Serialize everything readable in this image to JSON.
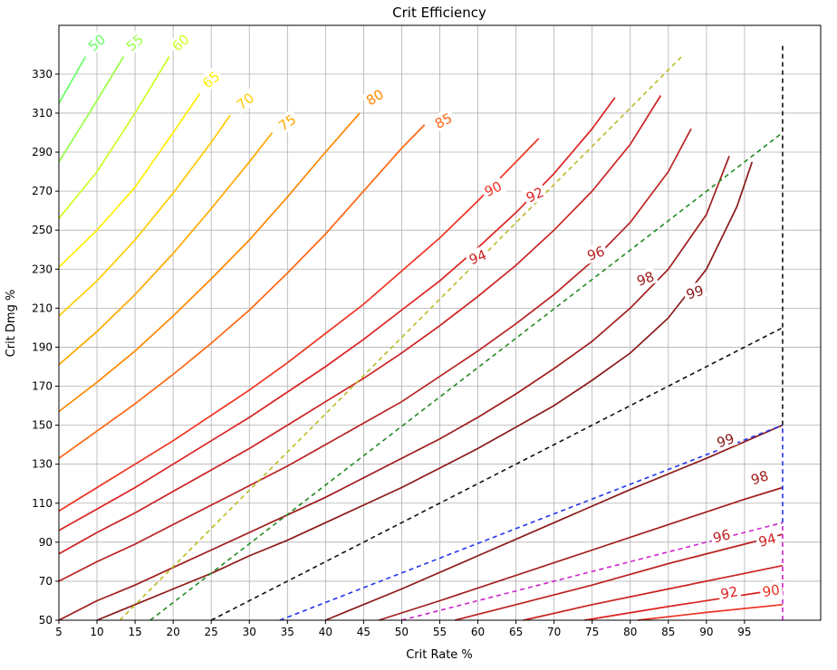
{
  "chart_data": {
    "type": "line",
    "subtype": "contour",
    "title": "Crit Efficiency",
    "xlabel": "Crit Rate %",
    "ylabel": "Crit Dmg %",
    "xlim": [
      5,
      105
    ],
    "ylim": [
      50,
      355
    ],
    "xticks": [
      5,
      10,
      15,
      20,
      25,
      30,
      35,
      40,
      45,
      50,
      55,
      60,
      65,
      70,
      75,
      80,
      85,
      90,
      95
    ],
    "yticks": [
      50,
      70,
      90,
      110,
      130,
      150,
      170,
      190,
      210,
      230,
      250,
      270,
      290,
      310,
      330
    ],
    "grid": true,
    "contour_levels": [
      {
        "level": 50,
        "label": "50",
        "color": "#66ff66"
      },
      {
        "level": 55,
        "label": "55",
        "color": "#99ff44"
      },
      {
        "level": 60,
        "label": "60",
        "color": "#ccff22"
      },
      {
        "level": 65,
        "label": "65",
        "color": "#ffee00"
      },
      {
        "level": 70,
        "label": "70",
        "color": "#ffcc00"
      },
      {
        "level": 75,
        "label": "75",
        "color": "#ffaa00"
      },
      {
        "level": 80,
        "label": "80",
        "color": "#ff8800"
      },
      {
        "level": 85,
        "label": "85",
        "color": "#ff6611"
      },
      {
        "level": 90,
        "label": "90",
        "color": "#ee3322"
      },
      {
        "level": 92,
        "label": "92",
        "color": "#dd2222"
      },
      {
        "level": 94,
        "label": "94",
        "color": "#cc2222"
      },
      {
        "level": 96,
        "label": "96",
        "color": "#bb2222"
      },
      {
        "level": 98,
        "label": "98",
        "color": "#a01c1c"
      },
      {
        "level": 99,
        "label": "99",
        "color": "#8b1a1a"
      }
    ],
    "upper_contours": [
      {
        "level": 50,
        "points": [
          [
            5,
            315
          ],
          [
            8.5,
            339
          ]
        ]
      },
      {
        "level": 55,
        "points": [
          [
            5,
            285
          ],
          [
            9,
            310
          ],
          [
            13.5,
            339
          ]
        ]
      },
      {
        "level": 60,
        "points": [
          [
            5,
            256
          ],
          [
            10,
            280
          ],
          [
            15,
            310
          ],
          [
            19.5,
            339
          ]
        ]
      },
      {
        "level": 65,
        "points": [
          [
            5,
            231
          ],
          [
            10,
            250
          ],
          [
            15,
            272
          ],
          [
            20,
            300
          ],
          [
            23.5,
            320
          ]
        ]
      },
      {
        "level": 70,
        "points": [
          [
            5,
            206
          ],
          [
            10,
            224
          ],
          [
            15,
            245
          ],
          [
            20,
            269
          ],
          [
            25,
            295
          ],
          [
            27.5,
            309
          ]
        ]
      },
      {
        "level": 75,
        "points": [
          [
            5,
            181
          ],
          [
            10,
            198
          ],
          [
            15,
            217
          ],
          [
            20,
            238
          ],
          [
            25,
            261
          ],
          [
            30,
            285
          ],
          [
            33,
            300
          ]
        ]
      },
      {
        "level": 80,
        "points": [
          [
            5,
            157
          ],
          [
            10,
            172
          ],
          [
            15,
            188
          ],
          [
            20,
            206
          ],
          [
            25,
            225
          ],
          [
            30,
            245
          ],
          [
            35,
            267
          ],
          [
            40,
            290
          ],
          [
            44.5,
            310
          ]
        ]
      },
      {
        "level": 85,
        "points": [
          [
            5,
            133
          ],
          [
            10,
            147
          ],
          [
            15,
            161
          ],
          [
            20,
            176
          ],
          [
            25,
            192
          ],
          [
            30,
            209
          ],
          [
            35,
            228
          ],
          [
            40,
            248
          ],
          [
            45,
            270
          ],
          [
            50,
            292
          ],
          [
            53,
            304
          ]
        ]
      },
      {
        "level": 90,
        "points": [
          [
            5,
            106
          ],
          [
            10,
            118
          ],
          [
            15,
            130
          ],
          [
            20,
            142
          ],
          [
            25,
            155
          ],
          [
            30,
            168
          ],
          [
            35,
            182
          ],
          [
            40,
            197
          ],
          [
            45,
            212
          ],
          [
            50,
            229
          ],
          [
            55,
            246
          ],
          [
            60,
            265
          ],
          [
            65,
            285
          ],
          [
            68,
            297
          ]
        ]
      },
      {
        "level": 92,
        "points": [
          [
            5,
            96
          ],
          [
            10,
            107
          ],
          [
            15,
            118
          ],
          [
            20,
            130
          ],
          [
            25,
            142
          ],
          [
            30,
            154
          ],
          [
            35,
            167
          ],
          [
            40,
            180
          ],
          [
            45,
            194
          ],
          [
            50,
            209
          ],
          [
            55,
            224
          ],
          [
            60,
            241
          ],
          [
            65,
            259
          ],
          [
            70,
            279
          ],
          [
            75,
            302
          ],
          [
            78,
            318
          ]
        ]
      },
      {
        "level": 94,
        "points": [
          [
            5,
            84
          ],
          [
            10,
            95
          ],
          [
            15,
            105
          ],
          [
            20,
            116
          ],
          [
            25,
            127
          ],
          [
            30,
            138
          ],
          [
            35,
            150
          ],
          [
            40,
            162
          ],
          [
            45,
            174
          ],
          [
            50,
            187
          ],
          [
            55,
            201
          ],
          [
            60,
            216
          ],
          [
            65,
            232
          ],
          [
            70,
            250
          ],
          [
            75,
            270
          ],
          [
            80,
            294
          ],
          [
            84,
            319
          ]
        ]
      },
      {
        "level": 96,
        "points": [
          [
            5,
            70
          ],
          [
            10,
            80
          ],
          [
            15,
            89
          ],
          [
            20,
            99
          ],
          [
            25,
            109
          ],
          [
            30,
            119
          ],
          [
            35,
            129
          ],
          [
            40,
            140
          ],
          [
            45,
            151
          ],
          [
            50,
            162
          ],
          [
            55,
            175
          ],
          [
            60,
            188
          ],
          [
            65,
            202
          ],
          [
            70,
            217
          ],
          [
            75,
            234
          ],
          [
            80,
            254
          ],
          [
            85,
            280
          ],
          [
            88,
            302
          ]
        ]
      },
      {
        "level": 98,
        "points": [
          [
            5,
            50
          ],
          [
            10,
            60
          ],
          [
            15,
            68
          ],
          [
            20,
            77
          ],
          [
            25,
            86
          ],
          [
            30,
            95
          ],
          [
            35,
            104
          ],
          [
            40,
            113
          ],
          [
            45,
            123
          ],
          [
            50,
            133
          ],
          [
            55,
            143
          ],
          [
            60,
            154
          ],
          [
            65,
            166
          ],
          [
            70,
            179
          ],
          [
            75,
            193
          ],
          [
            80,
            210
          ],
          [
            85,
            230
          ],
          [
            90,
            258
          ],
          [
            93,
            288
          ]
        ]
      },
      {
        "level": 99,
        "points": [
          [
            10,
            50
          ],
          [
            15,
            58
          ],
          [
            20,
            66
          ],
          [
            25,
            74
          ],
          [
            30,
            83
          ],
          [
            35,
            91
          ],
          [
            40,
            100
          ],
          [
            45,
            109
          ],
          [
            50,
            118
          ],
          [
            55,
            128
          ],
          [
            60,
            138
          ],
          [
            65,
            149
          ],
          [
            70,
            160
          ],
          [
            75,
            173
          ],
          [
            80,
            187
          ],
          [
            85,
            205
          ],
          [
            90,
            230
          ],
          [
            94,
            262
          ],
          [
            96,
            285
          ]
        ]
      }
    ],
    "lower_contours": [
      {
        "level": 99,
        "points": [
          [
            40,
            50
          ],
          [
            50,
            66
          ],
          [
            60,
            83
          ],
          [
            70,
            100
          ],
          [
            80,
            117
          ],
          [
            90,
            133
          ],
          [
            100,
            150
          ]
        ]
      },
      {
        "level": 98,
        "points": [
          [
            47,
            50
          ],
          [
            55,
            60
          ],
          [
            65,
            73
          ],
          [
            75,
            86
          ],
          [
            85,
            99
          ],
          [
            95,
            112
          ],
          [
            100,
            118
          ]
        ]
      },
      {
        "level": 96,
        "points": [
          [
            57,
            50
          ],
          [
            65,
            58
          ],
          [
            75,
            68
          ],
          [
            85,
            79
          ],
          [
            95,
            89
          ],
          [
            100,
            94
          ]
        ]
      },
      {
        "level": 94,
        "points": [
          [
            66,
            50
          ],
          [
            75,
            58
          ],
          [
            85,
            66
          ],
          [
            95,
            74
          ],
          [
            100,
            78
          ]
        ]
      },
      {
        "level": 92,
        "points": [
          [
            74,
            50
          ],
          [
            85,
            57
          ],
          [
            95,
            63
          ],
          [
            100,
            66
          ]
        ]
      },
      {
        "level": 90,
        "points": [
          [
            81,
            50
          ],
          [
            90,
            54
          ],
          [
            100,
            58
          ]
        ]
      }
    ],
    "reference_lines": [
      {
        "color": "#bbbb22",
        "points": [
          [
            13,
            50
          ],
          [
            87,
            340
          ]
        ]
      },
      {
        "color": "#228b22",
        "points": [
          [
            17,
            50
          ],
          [
            100,
            300
          ]
        ]
      },
      {
        "color": "#111111",
        "points": [
          [
            25,
            50
          ],
          [
            100,
            200
          ]
        ]
      },
      {
        "color": "#2233ee",
        "points": [
          [
            34,
            50
          ],
          [
            100,
            150
          ]
        ]
      },
      {
        "color": "#cc22cc",
        "points": [
          [
            50,
            50
          ],
          [
            100,
            100
          ]
        ]
      }
    ],
    "vertical_lines": [
      {
        "color": "#cc22cc",
        "x": 100,
        "ymin": 50,
        "ymax": 100
      },
      {
        "color": "#2233ee",
        "x": 100,
        "ymin": 100,
        "ymax": 150
      },
      {
        "color": "#111111",
        "x": 100,
        "ymin": 150,
        "ymax": 345
      }
    ],
    "contour_labels": [
      {
        "text": "50",
        "x": 10,
        "y": 346,
        "color": "#66ff66",
        "angle": -40
      },
      {
        "text": "55",
        "x": 15,
        "y": 346,
        "color": "#99ff44",
        "angle": -40
      },
      {
        "text": "60",
        "x": 21,
        "y": 346,
        "color": "#ccff22",
        "angle": -40
      },
      {
        "text": "65",
        "x": 25,
        "y": 327,
        "color": "#ffee00",
        "angle": -40
      },
      {
        "text": "70",
        "x": 29.5,
        "y": 316,
        "color": "#ffcc00",
        "angle": -38
      },
      {
        "text": "75",
        "x": 35,
        "y": 305,
        "color": "#ffaa00",
        "angle": -35
      },
      {
        "text": "80",
        "x": 46.5,
        "y": 318,
        "color": "#ff8800",
        "angle": -32
      },
      {
        "text": "85",
        "x": 55.5,
        "y": 306,
        "color": "#ff6611",
        "angle": -28
      },
      {
        "text": "90",
        "x": 62,
        "y": 271,
        "color": "#ee3322",
        "angle": -25
      },
      {
        "text": "92",
        "x": 67.5,
        "y": 268,
        "color": "#dd2222",
        "angle": -25
      },
      {
        "text": "94",
        "x": 60,
        "y": 236,
        "color": "#cc2222",
        "angle": -22
      },
      {
        "text": "96",
        "x": 75.5,
        "y": 238,
        "color": "#bb2222",
        "angle": -20
      },
      {
        "text": "98",
        "x": 82,
        "y": 225,
        "color": "#a01c1c",
        "angle": -20
      },
      {
        "text": "99",
        "x": 88.5,
        "y": 218,
        "color": "#8b1a1a",
        "angle": -18
      },
      {
        "text": "99",
        "x": 92.5,
        "y": 142,
        "color": "#8b1a1a",
        "angle": -18
      },
      {
        "text": "98",
        "x": 97,
        "y": 123,
        "color": "#a01c1c",
        "angle": -18
      },
      {
        "text": "96",
        "x": 92,
        "y": 93,
        "color": "#bb2222",
        "angle": -15
      },
      {
        "text": "94",
        "x": 98,
        "y": 91,
        "color": "#cc2222",
        "angle": -15
      },
      {
        "text": "92",
        "x": 93,
        "y": 64,
        "color": "#dd2222",
        "angle": -12
      },
      {
        "text": "90",
        "x": 98.5,
        "y": 65,
        "color": "#ee3322",
        "angle": -10
      }
    ]
  }
}
